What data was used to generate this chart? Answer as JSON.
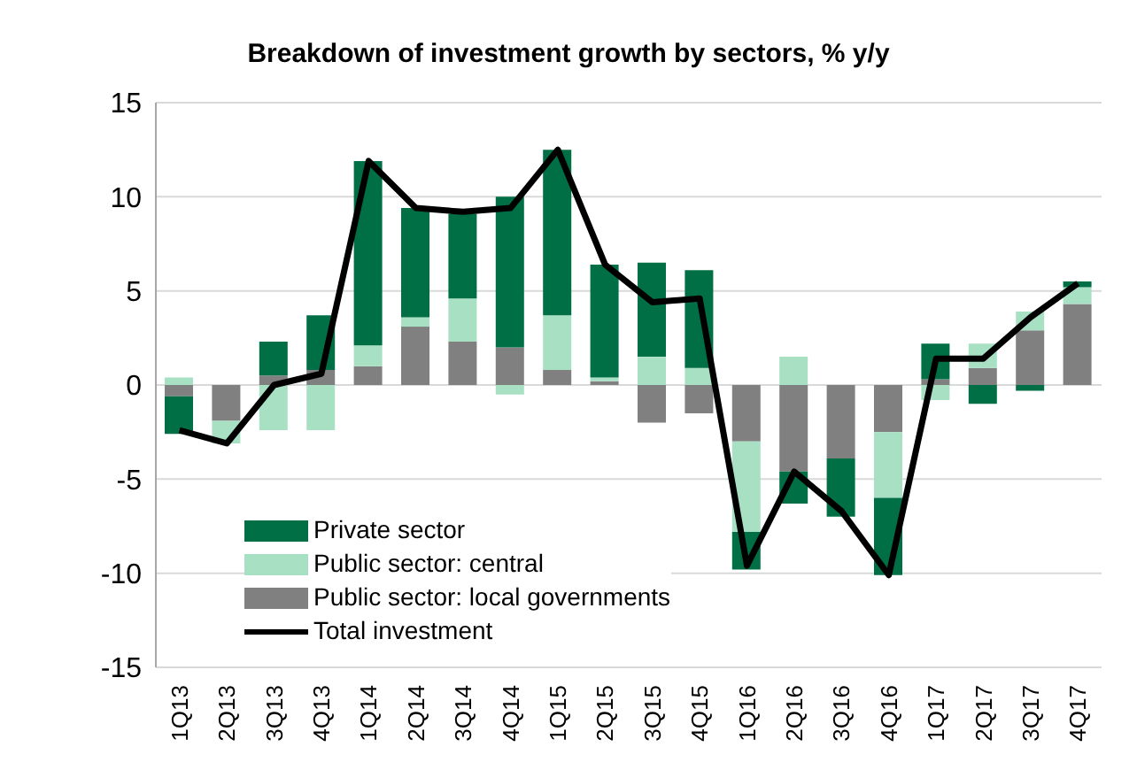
{
  "chart_data": {
    "type": "bar",
    "title": "Breakdown of investment growth by sectors, % y/y",
    "stacked": true,
    "categories": [
      "1Q13",
      "2Q13",
      "3Q13",
      "4Q13",
      "1Q14",
      "2Q14",
      "3Q14",
      "4Q14",
      "1Q15",
      "2Q15",
      "3Q15",
      "4Q15",
      "1Q16",
      "2Q16",
      "3Q16",
      "4Q16",
      "1Q17",
      "2Q17",
      "3Q17",
      "4Q17"
    ],
    "series": [
      {
        "name": "Public sector: local governments",
        "color": "#808080",
        "values": [
          -0.6,
          -1.9,
          0.5,
          0.8,
          1.0,
          3.1,
          2.3,
          2.0,
          0.8,
          0.2,
          -2.0,
          -1.5,
          -3.0,
          -4.6,
          -3.9,
          -2.5,
          0.3,
          0.9,
          2.9,
          4.3
        ]
      },
      {
        "name": "Public sector: central",
        "color": "#a8e0c4",
        "values": [
          0.4,
          -1.2,
          -2.4,
          -2.4,
          1.1,
          0.5,
          2.3,
          -0.5,
          2.9,
          0.2,
          1.5,
          0.9,
          -4.8,
          1.5,
          null,
          -3.5,
          -0.8,
          1.3,
          1.0,
          0.9
        ]
      },
      {
        "name": "Private sector",
        "color": "#006f45",
        "values": [
          -2.0,
          null,
          1.8,
          2.9,
          9.8,
          5.8,
          4.5,
          8.0,
          8.8,
          6.0,
          5.0,
          5.2,
          -2.0,
          -1.7,
          -3.1,
          -4.1,
          1.9,
          -1.0,
          -0.3,
          0.3
        ]
      },
      {
        "name": "Total investment",
        "type": "line",
        "color": "#000000",
        "values": [
          -2.4,
          -3.1,
          0.0,
          0.6,
          11.9,
          9.4,
          9.2,
          9.4,
          12.5,
          6.4,
          4.4,
          4.6,
          -9.6,
          -4.6,
          -6.7,
          -10.1,
          1.4,
          1.4,
          3.6,
          5.4
        ]
      }
    ],
    "ylim": [
      -15,
      15
    ],
    "yticks": [
      -15,
      -10,
      -5,
      0,
      5,
      10,
      15
    ],
    "grid": "y",
    "legend": "bottom left",
    "marker": "none",
    "line_style": "solid"
  }
}
